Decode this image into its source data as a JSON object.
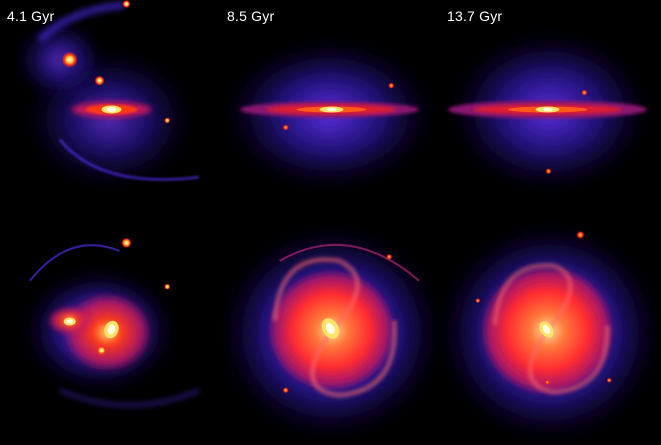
{
  "figure": {
    "panels": [
      {
        "label": "4.1 Gyr",
        "view": "edge-on"
      },
      {
        "label": "8.5 Gyr",
        "view": "edge-on"
      },
      {
        "label": "13.7 Gyr",
        "view": "edge-on"
      },
      {
        "label": "",
        "view": "face-on"
      },
      {
        "label": "",
        "view": "face-on"
      },
      {
        "label": "",
        "view": "face-on"
      }
    ],
    "colors": {
      "background": "#000000",
      "halo": "#3a1fd8",
      "outer_disk": "#c2185b",
      "disk": "#ff2a12",
      "core": "#ffe36a",
      "center": "#ffffe6"
    }
  }
}
